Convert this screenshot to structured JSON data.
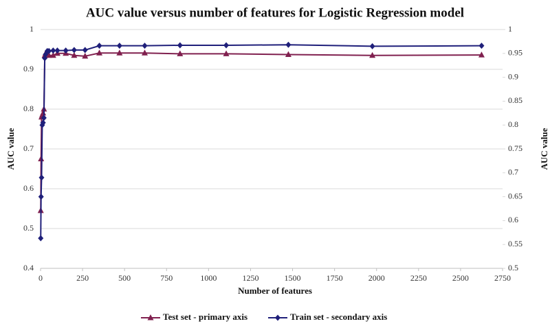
{
  "chart_data": {
    "type": "line",
    "title": "AUC value versus number of features for Logistic Regression model",
    "x_label": "Number of features",
    "y_label": "AUC value",
    "y2_label": "AUC value",
    "x": [
      1,
      3,
      6,
      10,
      15,
      20,
      25,
      30,
      40,
      50,
      75,
      100,
      150,
      200,
      265,
      350,
      470,
      620,
      830,
      1105,
      1475,
      1975,
      2625
    ],
    "series": [
      {
        "name": "Test set - primary axis",
        "color": "#80204f",
        "marker": "triangle",
        "values": [
          0.545,
          0.675,
          0.78,
          0.785,
          0.79,
          0.8,
          0.935,
          0.94,
          0.94,
          0.935,
          0.935,
          0.94,
          0.94,
          0.935,
          0.933,
          0.941,
          0.941,
          0.941,
          0.939,
          0.939,
          0.937,
          0.935,
          0.936
        ]
      },
      {
        "name": "Train set - secondary axis",
        "color": "#1f1f7a",
        "marker": "diamond",
        "axis": "y2",
        "values": [
          0.563,
          0.65,
          0.69,
          0.8,
          0.805,
          0.815,
          0.94,
          0.948,
          0.955,
          0.955,
          0.956,
          0.956,
          0.956,
          0.957,
          0.957,
          0.966,
          0.966,
          0.966,
          0.967,
          0.967,
          0.968,
          0.965,
          0.966
        ]
      }
    ],
    "xlim": [
      0,
      2750
    ],
    "xticks": [
      0,
      250,
      500,
      750,
      1000,
      1250,
      1500,
      1750,
      2000,
      2250,
      2500,
      2750
    ],
    "ylim": [
      0.4,
      1
    ],
    "yticks": [
      0.4,
      0.5,
      0.6,
      0.7,
      0.8,
      0.9,
      1
    ],
    "y2lim": [
      0.5,
      1
    ],
    "y2ticks": [
      0.5,
      0.55,
      0.6,
      0.65,
      0.7,
      0.75,
      0.8,
      0.85,
      0.9,
      0.95,
      1
    ],
    "grid": true,
    "legend": "bottom"
  }
}
